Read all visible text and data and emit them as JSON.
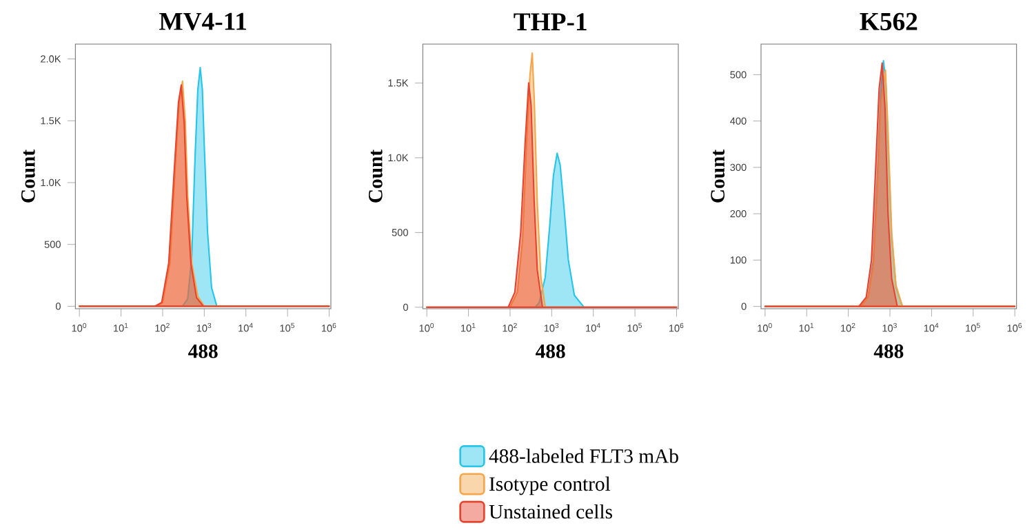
{
  "chart_data": [
    {
      "type": "area",
      "title": "MV4-11",
      "xlabel": "488",
      "ylabel": "Count",
      "log": "x",
      "xlim": [
        0.8,
        1100000
      ],
      "ylim": [
        -20,
        2120
      ],
      "xticks": [
        {
          "value": 1,
          "label": "10$^{0}$"
        },
        {
          "value": 10,
          "label": "10$^{1}$"
        },
        {
          "value": 100,
          "label": "10$^{2}$"
        },
        {
          "value": 1000,
          "label": "10$^{3}$"
        },
        {
          "value": 10000,
          "label": "10$^{4}$"
        },
        {
          "value": 100000,
          "label": "10$^{5}$"
        },
        {
          "value": 1000000,
          "label": "10$^{6}$"
        }
      ],
      "yticks": [
        0,
        500,
        {
          "value": 1000,
          "label": "1.0K"
        },
        {
          "value": 1500,
          "label": "1.5K"
        },
        {
          "value": 2000,
          "label": "2.0K"
        }
      ],
      "series": [
        {
          "color": "#29c5e8",
          "x": [
            1,
            300,
            400,
            500,
            600,
            700,
            800,
            900,
            1000,
            1200,
            1500,
            2000,
            1000000
          ],
          "values": [
            0,
            0,
            60,
            400,
            1200,
            1750,
            1930,
            1750,
            1300,
            600,
            150,
            0,
            0
          ]
        },
        {
          "color": "#f5a54a",
          "x": [
            1,
            70,
            100,
            150,
            200,
            250,
            300,
            350,
            400,
            500,
            700,
            1000,
            1000000
          ],
          "values": [
            0,
            0,
            30,
            350,
            1100,
            1650,
            1820,
            1500,
            900,
            350,
            80,
            0,
            0
          ]
        },
        {
          "color": "#e8432e",
          "x": [
            1,
            65,
            95,
            140,
            190,
            240,
            280,
            330,
            380,
            480,
            650,
            950,
            1000000
          ],
          "values": [
            0,
            0,
            30,
            350,
            1100,
            1650,
            1790,
            1480,
            880,
            340,
            70,
            0,
            0
          ]
        }
      ]
    },
    {
      "type": "area",
      "title": "THP-1",
      "xlabel": "488",
      "ylabel": "Count",
      "log": "x",
      "legend": "bottom",
      "xlim": [
        0.8,
        1100000
      ],
      "ylim": [
        -10,
        1760
      ],
      "xticks": [
        {
          "value": 1,
          "label": "10$^{0}$"
        },
        {
          "value": 10,
          "label": "10$^{1}$"
        },
        {
          "value": 100,
          "label": "10$^{2}$"
        },
        {
          "value": 1000,
          "label": "10$^{3}$"
        },
        {
          "value": 10000,
          "label": "10$^{4}$"
        },
        {
          "value": 100000,
          "label": "10$^{5}$"
        },
        {
          "value": 1000000,
          "label": "10$^{6}$"
        }
      ],
      "yticks": [
        0,
        500,
        {
          "value": 1000,
          "label": "1.0K"
        },
        {
          "value": 1500,
          "label": "1.5K"
        }
      ],
      "series": [
        {
          "name": "488-labeled FLT3 mAb",
          "color": "#29c5e8",
          "x": [
            1,
            400,
            500,
            700,
            900,
            1100,
            1350,
            1600,
            2000,
            2500,
            3500,
            6000,
            1000000
          ],
          "values": [
            0,
            0,
            30,
            200,
            550,
            880,
            1030,
            950,
            650,
            320,
            80,
            0,
            0
          ]
        },
        {
          "name": "Isotype control",
          "color": "#f5a54a",
          "x": [
            1,
            100,
            150,
            200,
            250,
            300,
            340,
            380,
            450,
            550,
            700,
            1000000
          ],
          "values": [
            0,
            0,
            100,
            450,
            1100,
            1550,
            1700,
            1400,
            700,
            200,
            0,
            0
          ]
        },
        {
          "name": "Unstained cells",
          "color": "#e8432e",
          "x": [
            1,
            90,
            130,
            180,
            230,
            280,
            320,
            380,
            450,
            600,
            1000000
          ],
          "values": [
            0,
            0,
            100,
            500,
            1100,
            1500,
            1350,
            700,
            250,
            0,
            0
          ]
        }
      ]
    },
    {
      "type": "area",
      "title": "K562",
      "xlabel": "488",
      "ylabel": "Count",
      "log": "x",
      "xlim": [
        0.8,
        1100000
      ],
      "ylim": [
        -5,
        566
      ],
      "xticks": [
        {
          "value": 1,
          "label": "10$^{0}$"
        },
        {
          "value": 10,
          "label": "10$^{1}$"
        },
        {
          "value": 100,
          "label": "10$^{2}$"
        },
        {
          "value": 1000,
          "label": "10$^{3}$"
        },
        {
          "value": 10000,
          "label": "10$^{4}$"
        },
        {
          "value": 100000,
          "label": "10$^{5}$"
        },
        {
          "value": 1000000,
          "label": "10$^{6}$"
        }
      ],
      "yticks": [
        0,
        100,
        200,
        300,
        400,
        500
      ],
      "series": [
        {
          "color": "#29c5e8",
          "x": [
            1,
            200,
            300,
            400,
            500,
            600,
            700,
            800,
            900,
            1100,
            1400,
            2000,
            1000000
          ],
          "values": [
            0,
            0,
            20,
            100,
            280,
            460,
            530,
            480,
            350,
            150,
            40,
            0,
            0
          ]
        },
        {
          "color": "#f5a54a",
          "x": [
            1,
            200,
            300,
            400,
            500,
            600,
            780,
            900,
            1100,
            1400,
            2000,
            1000000
          ],
          "values": [
            0,
            0,
            20,
            90,
            260,
            440,
            510,
            380,
            160,
            45,
            0,
            0
          ]
        },
        {
          "color": "#e8432e",
          "x": [
            1,
            180,
            270,
            360,
            450,
            550,
            650,
            760,
            900,
            1100,
            1500,
            1000000
          ],
          "values": [
            0,
            0,
            20,
            100,
            290,
            470,
            525,
            430,
            200,
            60,
            0,
            0
          ]
        }
      ]
    }
  ]
}
